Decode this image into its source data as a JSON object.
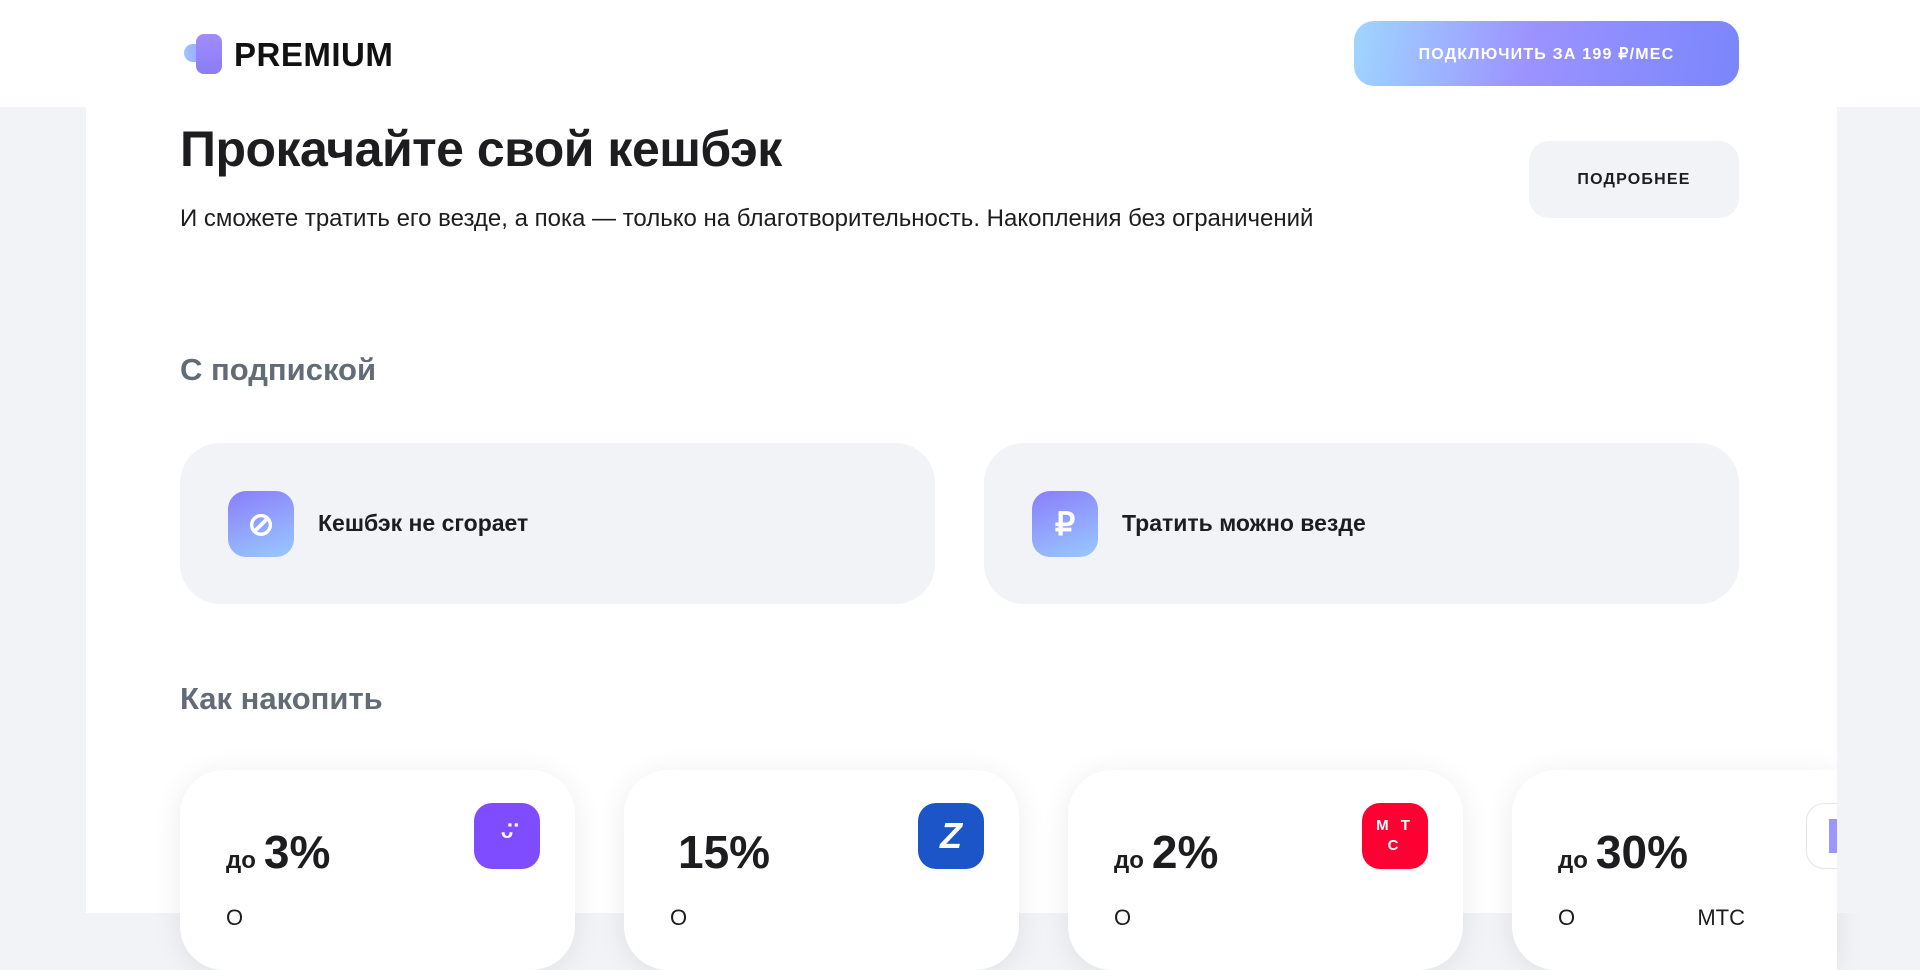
{
  "header": {
    "logo_text": "PREMIUM",
    "cta_label": "ПОДКЛЮЧИТЬ ЗА 199 ₽/МЕС"
  },
  "hero": {
    "title": "Прокачайте свой кешбэк",
    "subtitle": "И сможете тратить его везде, а пока — только на благотворительность. Накопления без ограничений",
    "more_label": "ПОДРОБНЕЕ"
  },
  "subscription": {
    "heading": "С подпиской",
    "features": [
      {
        "label": "Кешбэк не сгорает",
        "icon": "flame-off-icon"
      },
      {
        "label": "Тратить можно везде",
        "icon": "ruble-icon"
      }
    ]
  },
  "accumulate": {
    "heading": "Как накопить",
    "cards": [
      {
        "prefix": "до",
        "value": "3%",
        "brand_icon": "smile-app-icon",
        "brand_color": "#7f4dff",
        "desc": "О"
      },
      {
        "prefix": "",
        "value": "15%",
        "brand_icon": "blue-z-app-icon",
        "brand_color": "#1c55c8",
        "desc": "О"
      },
      {
        "prefix": "до",
        "value": "2%",
        "brand_icon": "mts-logo-icon",
        "brand_color": "#ff0032",
        "brand_text": "М Т С",
        "desc": "О"
      },
      {
        "prefix": "до",
        "value": "30%",
        "brand_icon": "partner-app-icon",
        "brand_color": "#9a98ff",
        "desc": "О                    МТС"
      }
    ]
  },
  "colors": {
    "accent_gradient_start": "#9fd6ff",
    "accent_gradient_end": "#7a86fb",
    "section_gray": "#626c77",
    "card_bg": "#f2f3f7"
  }
}
